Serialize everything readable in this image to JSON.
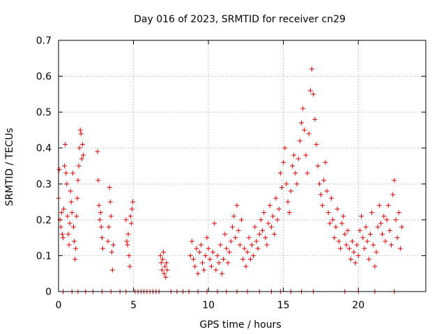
{
  "chart_data": {
    "type": "scatter",
    "title": "Day 016 of 2023, SRMTID for receiver cn29",
    "xlabel": "GPS time / hours",
    "ylabel": "SRMTID / TECUs",
    "xlim": [
      0,
      24.5
    ],
    "ylim": [
      0,
      0.7
    ],
    "xticks": [
      "0",
      "5",
      "10",
      "15",
      "20"
    ],
    "yticks": [
      "0",
      "0.1",
      "0.2",
      "0.3",
      "0.4",
      "0.5",
      "0.6",
      "0.7"
    ],
    "grid": true,
    "marker": "+",
    "color": "#e00000",
    "series": [
      {
        "name": "SRMTID",
        "points": [
          [
            0.0,
            0.26
          ],
          [
            0.05,
            0.34
          ],
          [
            0.1,
            0.2
          ],
          [
            0.15,
            0.18
          ],
          [
            0.2,
            0.22
          ],
          [
            0.25,
            0.16
          ],
          [
            0.3,
            0.15
          ],
          [
            0.35,
            0.23
          ],
          [
            0.4,
            0.35
          ],
          [
            0.45,
            0.41
          ],
          [
            0.5,
            0.33
          ],
          [
            0.55,
            0.3
          ],
          [
            0.6,
            0.21
          ],
          [
            0.65,
            0.16
          ],
          [
            0.7,
            0.13
          ],
          [
            0.75,
            0.19
          ],
          [
            0.8,
            0.28
          ],
          [
            0.85,
            0.25
          ],
          [
            0.9,
            0.22
          ],
          [
            0.95,
            0.33
          ],
          [
            1.0,
            0.18
          ],
          [
            1.05,
            0.14
          ],
          [
            1.1,
            0.09
          ],
          [
            1.15,
            0.12
          ],
          [
            1.2,
            0.21
          ],
          [
            1.25,
            0.26
          ],
          [
            1.3,
            0.31
          ],
          [
            1.35,
            0.35
          ],
          [
            1.4,
            0.4
          ],
          [
            1.45,
            0.45
          ],
          [
            1.5,
            0.44
          ],
          [
            1.55,
            0.37
          ],
          [
            1.6,
            0.41
          ],
          [
            1.65,
            0.38
          ],
          [
            2.6,
            0.39
          ],
          [
            2.65,
            0.31
          ],
          [
            2.7,
            0.24
          ],
          [
            2.75,
            0.2
          ],
          [
            2.8,
            0.22
          ],
          [
            2.85,
            0.18
          ],
          [
            2.9,
            0.15
          ],
          [
            2.95,
            0.12
          ],
          [
            3.3,
            0.14
          ],
          [
            3.35,
            0.18
          ],
          [
            3.4,
            0.29
          ],
          [
            3.45,
            0.25
          ],
          [
            3.5,
            0.21
          ],
          [
            3.55,
            0.11
          ],
          [
            3.6,
            0.06
          ],
          [
            3.65,
            0.13
          ],
          [
            4.5,
            0.2
          ],
          [
            4.55,
            0.14
          ],
          [
            4.6,
            0.13
          ],
          [
            4.65,
            0.16
          ],
          [
            4.7,
            0.1
          ],
          [
            4.75,
            0.07
          ],
          [
            4.8,
            0.21
          ],
          [
            4.85,
            0.19
          ],
          [
            4.9,
            0.23
          ],
          [
            4.95,
            0.25
          ],
          [
            6.8,
            0.1
          ],
          [
            6.85,
            0.08
          ],
          [
            6.9,
            0.06
          ],
          [
            6.95,
            0.09
          ],
          [
            7.0,
            0.11
          ],
          [
            7.05,
            0.05
          ],
          [
            7.1,
            0.07
          ],
          [
            7.15,
            0.04
          ],
          [
            7.2,
            0.08
          ],
          [
            7.25,
            0.06
          ],
          [
            8.8,
            0.1
          ],
          [
            8.9,
            0.14
          ],
          [
            9.0,
            0.09
          ],
          [
            9.1,
            0.07
          ],
          [
            9.2,
            0.12
          ],
          [
            9.3,
            0.05
          ],
          [
            9.4,
            0.11
          ],
          [
            9.5,
            0.13
          ],
          [
            9.6,
            0.08
          ],
          [
            9.7,
            0.06
          ],
          [
            9.8,
            0.1
          ],
          [
            9.9,
            0.15
          ],
          [
            10.0,
            0.12
          ],
          [
            10.1,
            0.09
          ],
          [
            10.2,
            0.07
          ],
          [
            10.3,
            0.11
          ],
          [
            10.4,
            0.19
          ],
          [
            10.5,
            0.06
          ],
          [
            10.6,
            0.1
          ],
          [
            10.7,
            0.08
          ],
          [
            10.8,
            0.13
          ],
          [
            10.9,
            0.05
          ],
          [
            11.0,
            0.09
          ],
          [
            11.1,
            0.16
          ],
          [
            11.2,
            0.12
          ],
          [
            11.3,
            0.08
          ],
          [
            11.4,
            0.11
          ],
          [
            11.5,
            0.14
          ],
          [
            11.6,
            0.18
          ],
          [
            11.7,
            0.21
          ],
          [
            11.8,
            0.15
          ],
          [
            11.9,
            0.24
          ],
          [
            12.0,
            0.17
          ],
          [
            12.1,
            0.13
          ],
          [
            12.2,
            0.2
          ],
          [
            12.3,
            0.09
          ],
          [
            12.4,
            0.12
          ],
          [
            12.5,
            0.07
          ],
          [
            12.6,
            0.11
          ],
          [
            12.7,
            0.15
          ],
          [
            12.8,
            0.09
          ],
          [
            12.9,
            0.13
          ],
          [
            13.0,
            0.1
          ],
          [
            13.1,
            0.18
          ],
          [
            13.2,
            0.14
          ],
          [
            13.3,
            0.12
          ],
          [
            13.4,
            0.16
          ],
          [
            13.5,
            0.2
          ],
          [
            13.6,
            0.17
          ],
          [
            13.7,
            0.22
          ],
          [
            13.8,
            0.15
          ],
          [
            13.9,
            0.13
          ],
          [
            14.0,
            0.19
          ],
          [
            14.1,
            0.24
          ],
          [
            14.2,
            0.18
          ],
          [
            14.3,
            0.21
          ],
          [
            14.4,
            0.16
          ],
          [
            14.5,
            0.26
          ],
          [
            14.6,
            0.2
          ],
          [
            14.7,
            0.23
          ],
          [
            14.8,
            0.33
          ],
          [
            14.9,
            0.29
          ],
          [
            15.0,
            0.36
          ],
          [
            15.1,
            0.4
          ],
          [
            15.2,
            0.3
          ],
          [
            15.3,
            0.25
          ],
          [
            15.4,
            0.22
          ],
          [
            15.5,
            0.28
          ],
          [
            15.6,
            0.35
          ],
          [
            15.7,
            0.38
          ],
          [
            15.8,
            0.33
          ],
          [
            15.9,
            0.3
          ],
          [
            16.0,
            0.37
          ],
          [
            16.1,
            0.42
          ],
          [
            16.2,
            0.47
          ],
          [
            16.3,
            0.51
          ],
          [
            16.4,
            0.45
          ],
          [
            16.5,
            0.38
          ],
          [
            16.6,
            0.33
          ],
          [
            16.7,
            0.44
          ],
          [
            16.8,
            0.56
          ],
          [
            16.9,
            0.62
          ],
          [
            17.0,
            0.55
          ],
          [
            17.1,
            0.48
          ],
          [
            17.2,
            0.41
          ],
          [
            17.3,
            0.35
          ],
          [
            17.4,
            0.3
          ],
          [
            17.5,
            0.27
          ],
          [
            17.6,
            0.24
          ],
          [
            17.7,
            0.31
          ],
          [
            17.8,
            0.36
          ],
          [
            17.9,
            0.28
          ],
          [
            18.0,
            0.22
          ],
          [
            18.1,
            0.19
          ],
          [
            18.2,
            0.26
          ],
          [
            18.3,
            0.2
          ],
          [
            18.4,
            0.15
          ],
          [
            18.5,
            0.18
          ],
          [
            18.6,
            0.23
          ],
          [
            18.7,
            0.14
          ],
          [
            18.8,
            0.12
          ],
          [
            18.9,
            0.19
          ],
          [
            19.0,
            0.21
          ],
          [
            19.1,
            0.16
          ],
          [
            19.2,
            0.13
          ],
          [
            19.3,
            0.17
          ],
          [
            19.4,
            0.12
          ],
          [
            19.5,
            0.09
          ],
          [
            19.6,
            0.14
          ],
          [
            19.7,
            0.11
          ],
          [
            19.8,
            0.08
          ],
          [
            19.9,
            0.13
          ],
          [
            20.0,
            0.1
          ],
          [
            20.1,
            0.17
          ],
          [
            20.2,
            0.21
          ],
          [
            20.3,
            0.15
          ],
          [
            20.4,
            0.12
          ],
          [
            20.5,
            0.18
          ],
          [
            20.6,
            0.14
          ],
          [
            20.7,
            0.09
          ],
          [
            20.8,
            0.16
          ],
          [
            20.9,
            0.22
          ],
          [
            21.0,
            0.13
          ],
          [
            21.1,
            0.07
          ],
          [
            21.2,
            0.11
          ],
          [
            21.3,
            0.18
          ],
          [
            21.4,
            0.24
          ],
          [
            21.5,
            0.19
          ],
          [
            21.6,
            0.16
          ],
          [
            21.7,
            0.21
          ],
          [
            21.8,
            0.14
          ],
          [
            21.9,
            0.2
          ],
          [
            22.0,
            0.24
          ],
          [
            22.1,
            0.17
          ],
          [
            22.2,
            0.13
          ],
          [
            22.3,
            0.27
          ],
          [
            22.4,
            0.31
          ],
          [
            22.5,
            0.2
          ],
          [
            22.6,
            0.15
          ],
          [
            22.7,
            0.22
          ],
          [
            22.8,
            0.12
          ],
          [
            22.9,
            0.18
          ],
          [
            0.3,
            0.0
          ],
          [
            0.9,
            0.0
          ],
          [
            1.3,
            0.0
          ],
          [
            1.8,
            0.0
          ],
          [
            2.3,
            0.0
          ],
          [
            2.9,
            0.0
          ],
          [
            3.5,
            0.0
          ],
          [
            4.1,
            0.0
          ],
          [
            4.5,
            0.0
          ],
          [
            5.1,
            0.0
          ],
          [
            5.3,
            0.0
          ],
          [
            5.5,
            0.0
          ],
          [
            5.7,
            0.0
          ],
          [
            5.9,
            0.0
          ],
          [
            6.1,
            0.0
          ],
          [
            6.3,
            0.0
          ],
          [
            6.5,
            0.0
          ],
          [
            6.7,
            0.0
          ],
          [
            7.5,
            0.0
          ],
          [
            7.9,
            0.0
          ],
          [
            8.3,
            0.0
          ],
          [
            8.7,
            0.0
          ],
          [
            9.3,
            0.0
          ],
          [
            9.9,
            0.0
          ],
          [
            10.6,
            0.0
          ],
          [
            11.2,
            0.0
          ],
          [
            11.9,
            0.0
          ],
          [
            12.6,
            0.0
          ],
          [
            13.4,
            0.0
          ],
          [
            14.2,
            0.0
          ],
          [
            14.8,
            0.0
          ],
          [
            15.5,
            0.0
          ],
          [
            16.2,
            0.0
          ],
          [
            17.0,
            0.0
          ],
          [
            19.1,
            0.0
          ],
          [
            20.0,
            0.0
          ],
          [
            21.1,
            0.0
          ],
          [
            22.4,
            0.0
          ]
        ]
      }
    ]
  }
}
